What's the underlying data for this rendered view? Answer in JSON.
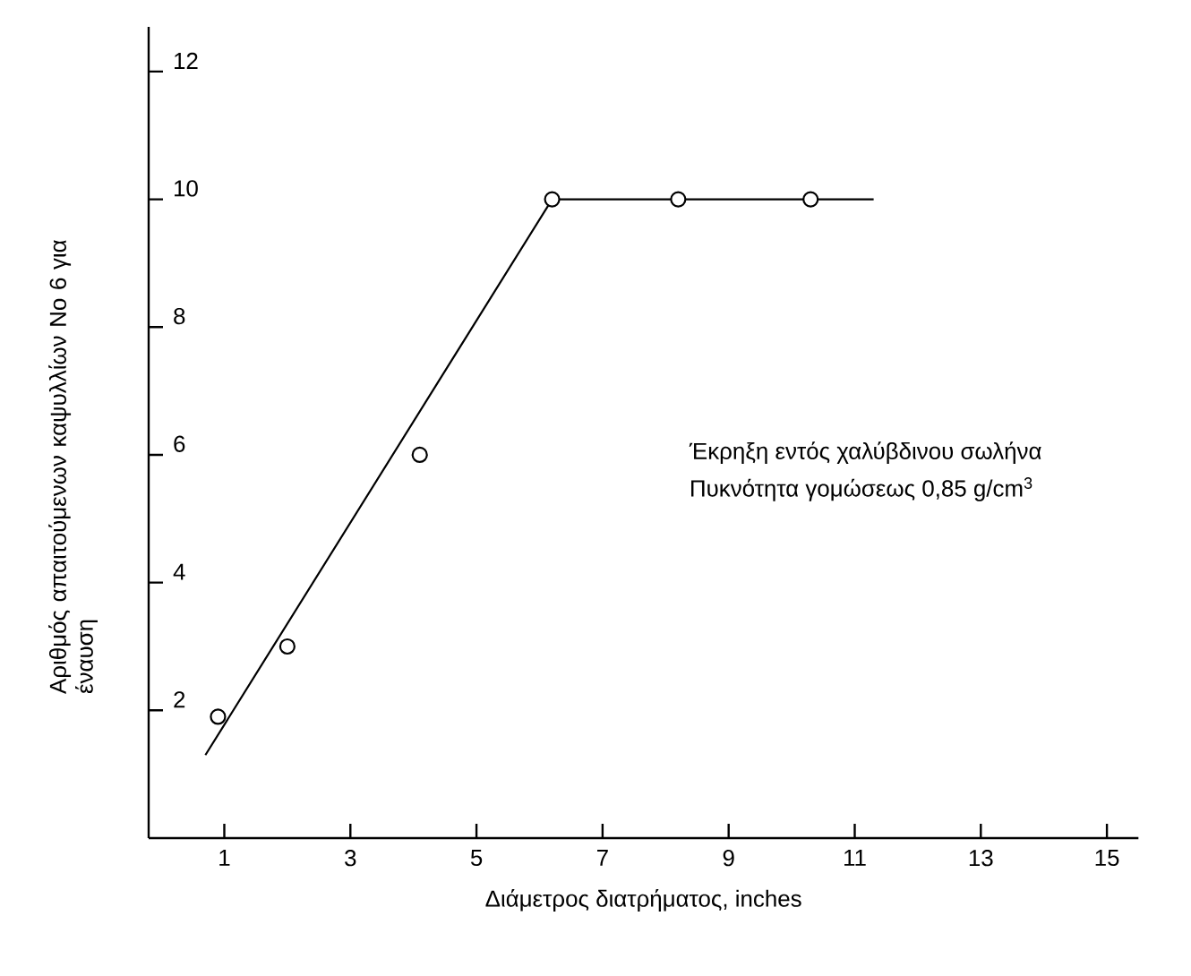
{
  "chart_data": {
    "type": "scatter",
    "xlabel": "Διάμετρος διατρήματος, inches",
    "ylabel": "Αριθμός απαιτούμενων καψυλλίων No 6 για έναυση",
    "xlim": [
      -0.2,
      15.5
    ],
    "ylim": [
      0,
      12.7
    ],
    "xticks": [
      1,
      3,
      5,
      7,
      9,
      11,
      13,
      15
    ],
    "yticks": [
      2,
      4,
      6,
      8,
      10,
      12
    ],
    "grid": false,
    "series": [
      {
        "color": "#000000",
        "marker": "circle",
        "x": [
          0.9,
          2.0,
          4.1,
          6.2,
          8.2,
          10.3
        ],
        "values": [
          1.9,
          3.0,
          6.0,
          10,
          10,
          10
        ]
      },
      {
        "type": "line",
        "color": "#000000",
        "marker": "none",
        "line_style": "solid",
        "x": [
          0.7,
          6.2,
          11.3
        ],
        "values": [
          1.3,
          10,
          10
        ]
      }
    ],
    "annotations": [
      "Έκρηξη εντός χαλύβδινου σωλήνα",
      "Πυκνότητα γομώσεως 0,85 g/cm$^{3}$"
    ]
  }
}
